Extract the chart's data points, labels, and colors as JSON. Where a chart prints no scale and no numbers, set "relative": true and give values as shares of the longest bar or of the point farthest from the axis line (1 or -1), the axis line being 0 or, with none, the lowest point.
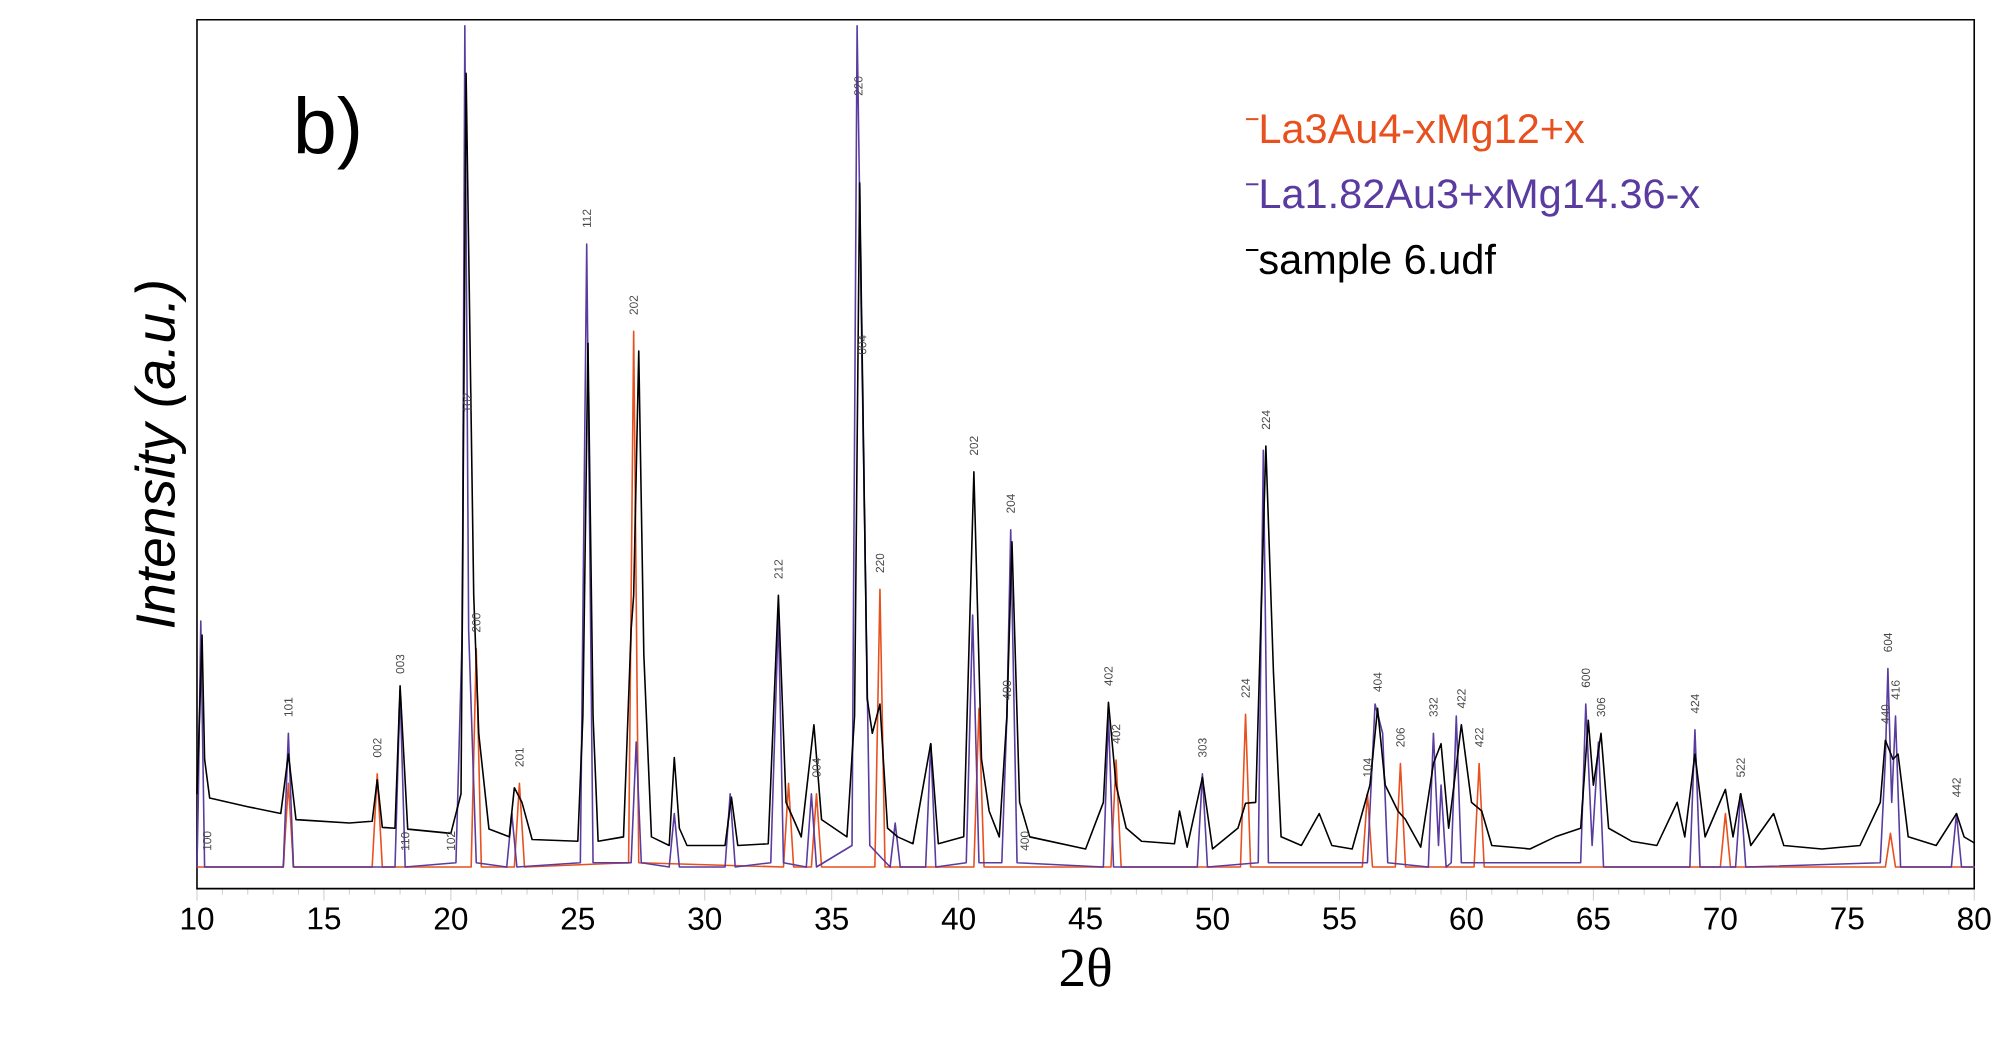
{
  "chart_data": {
    "type": "line",
    "title": "b)",
    "xlabel": "2θ",
    "ylabel": "Intensity (a.u.)",
    "relative": true,
    "legend": "top right",
    "xlim": [
      10,
      80
    ],
    "xticks": [
      10,
      15,
      20,
      25,
      30,
      35,
      40,
      45,
      50,
      55,
      60,
      65,
      70,
      75,
      80
    ],
    "series": [
      {
        "name": "La3Au4-xMg12+x",
        "color": "#e8501e",
        "x": [
          10.0,
          13.4,
          13.6,
          13.8,
          16.9,
          17.1,
          17.3,
          20.8,
          21.0,
          21.2,
          22.5,
          22.7,
          22.9,
          27.0,
          27.2,
          27.4,
          33.1,
          33.3,
          33.5,
          34.2,
          34.4,
          34.6,
          36.7,
          36.9,
          37.1,
          40.6,
          40.8,
          41.0,
          46.0,
          46.2,
          46.4,
          51.1,
          51.3,
          51.5,
          55.9,
          56.1,
          56.3,
          57.2,
          57.4,
          57.6,
          60.3,
          60.5,
          60.7,
          70.0,
          70.2,
          70.4,
          76.5,
          76.7,
          76.9,
          80
        ],
        "values": [
          0.025,
          0.025,
          0.122,
          0.025,
          0.025,
          0.133,
          0.025,
          0.025,
          0.278,
          0.025,
          0.025,
          0.122,
          0.025,
          0.03,
          0.646,
          0.03,
          0.025,
          0.122,
          0.025,
          0.025,
          0.11,
          0.025,
          0.025,
          0.347,
          0.025,
          0.025,
          0.209,
          0.025,
          0.025,
          0.149,
          0.025,
          0.025,
          0.202,
          0.025,
          0.025,
          0.11,
          0.025,
          0.025,
          0.145,
          0.025,
          0.025,
          0.145,
          0.025,
          0.025,
          0.087,
          0.025,
          0.025,
          0.064,
          0.025,
          0.025
        ]
      },
      {
        "name": "La1.82Au3+xMg14.36-x",
        "color": "#5a3ca0",
        "x": [
          10.0,
          10.05,
          10.15,
          10.3,
          13.4,
          13.6,
          13.8,
          17.8,
          18.0,
          18.2,
          20.2,
          20.45,
          20.55,
          20.7,
          21.0,
          22.2,
          22.4,
          22.6,
          25.1,
          25.35,
          25.6,
          27.1,
          27.3,
          27.5,
          28.6,
          28.8,
          29.0,
          30.8,
          31.0,
          31.2,
          32.6,
          32.9,
          33.1,
          34.0,
          34.2,
          34.4,
          35.8,
          36.0,
          36.2,
          36.5,
          37.3,
          37.5,
          37.7,
          38.7,
          38.9,
          39.1,
          40.3,
          40.55,
          40.8,
          41.7,
          41.9,
          42.05,
          42.3,
          45.7,
          45.9,
          46.1,
          49.4,
          49.6,
          49.8,
          51.8,
          52.0,
          52.2,
          56.1,
          56.4,
          56.7,
          56.9,
          58.5,
          58.7,
          58.9,
          59.0,
          59.2,
          59.4,
          59.6,
          59.8,
          64.5,
          64.7,
          64.95,
          65.2,
          65.4,
          68.8,
          69.0,
          69.2,
          70.6,
          70.8,
          71.0,
          76.3,
          76.5,
          76.6,
          76.75,
          76.9,
          77.1,
          79.1,
          79.3,
          79.5,
          80
        ],
        "values": [
          0.025,
          0.1,
          0.31,
          0.025,
          0.025,
          0.18,
          0.025,
          0.025,
          0.23,
          0.025,
          0.03,
          0.3,
          1.0,
          0.3,
          0.03,
          0.025,
          0.087,
          0.025,
          0.03,
          0.747,
          0.03,
          0.03,
          0.17,
          0.03,
          0.025,
          0.087,
          0.025,
          0.025,
          0.11,
          0.025,
          0.03,
          0.317,
          0.03,
          0.025,
          0.11,
          0.025,
          0.05,
          1.0,
          0.6,
          0.05,
          0.025,
          0.076,
          0.025,
          0.025,
          0.168,
          0.025,
          0.03,
          0.317,
          0.03,
          0.03,
          0.2,
          0.416,
          0.03,
          0.025,
          0.2,
          0.025,
          0.025,
          0.133,
          0.025,
          0.03,
          0.508,
          0.03,
          0.03,
          0.214,
          0.18,
          0.03,
          0.025,
          0.18,
          0.05,
          0.12,
          0.025,
          0.03,
          0.2,
          0.03,
          0.03,
          0.214,
          0.05,
          0.17,
          0.025,
          0.025,
          0.184,
          0.025,
          0.025,
          0.11,
          0.025,
          0.03,
          0.15,
          0.255,
          0.1,
          0.2,
          0.025,
          0.025,
          0.087,
          0.025,
          0.025
        ]
      },
      {
        "name": "sample 6.udf",
        "color": "#000000",
        "x": [
          10.0,
          10.1,
          10.2,
          10.3,
          10.5,
          12,
          13.3,
          13.6,
          13.9,
          16,
          16.9,
          17.1,
          17.3,
          17.8,
          18.0,
          18.3,
          20,
          20.4,
          20.6,
          20.9,
          21.1,
          21.5,
          22.3,
          22.5,
          22.8,
          23.2,
          25.0,
          25.2,
          25.4,
          25.6,
          25.8,
          26.8,
          27.1,
          27.2,
          27.4,
          27.6,
          27.9,
          28.6,
          28.8,
          29.0,
          29.3,
          30.8,
          31.05,
          31.3,
          32.5,
          32.9,
          33.2,
          33.4,
          33.8,
          34.3,
          34.6,
          35.6,
          35.9,
          36.1,
          36.4,
          36.6,
          36.9,
          37.2,
          37.6,
          38.2,
          38.9,
          39.2,
          40.2,
          40.6,
          40.9,
          41.2,
          41.6,
          41.9,
          42.1,
          42.4,
          42.8,
          45.0,
          45.7,
          45.9,
          46.2,
          46.6,
          47.2,
          48.5,
          48.7,
          49.0,
          49.6,
          50.0,
          51.0,
          51.3,
          51.7,
          52.1,
          52.4,
          52.7,
          53.5,
          54.2,
          54.7,
          55.5,
          56.2,
          56.5,
          56.8,
          57.3,
          57.6,
          58.2,
          58.7,
          59.0,
          59.3,
          59.8,
          60.2,
          60.6,
          61.0,
          62.5,
          63.5,
          64.5,
          64.8,
          65.0,
          65.3,
          65.6,
          66.5,
          67.5,
          68.3,
          68.6,
          69.0,
          69.4,
          70.2,
          70.5,
          70.8,
          71.2,
          72.1,
          72.5,
          74,
          75.5,
          76.3,
          76.5,
          76.8,
          77.0,
          77.4,
          78.5,
          79.3,
          79.6,
          80
        ],
        "values": [
          0.11,
          0.2,
          0.294,
          0.15,
          0.105,
          0.095,
          0.087,
          0.156,
          0.08,
          0.076,
          0.078,
          0.126,
          0.071,
          0.07,
          0.235,
          0.069,
          0.064,
          0.11,
          0.945,
          0.34,
          0.179,
          0.069,
          0.06,
          0.117,
          0.1,
          0.057,
          0.055,
          0.2,
          0.632,
          0.2,
          0.055,
          0.06,
          0.3,
          0.34,
          0.623,
          0.271,
          0.06,
          0.05,
          0.152,
          0.07,
          0.05,
          0.05,
          0.106,
          0.05,
          0.052,
          0.34,
          0.1,
          0.087,
          0.06,
          0.19,
          0.08,
          0.06,
          0.2,
          0.818,
          0.22,
          0.18,
          0.214,
          0.07,
          0.06,
          0.052,
          0.168,
          0.052,
          0.06,
          0.483,
          0.15,
          0.09,
          0.06,
          0.2,
          0.402,
          0.1,
          0.06,
          0.046,
          0.1,
          0.216,
          0.12,
          0.07,
          0.055,
          0.052,
          0.09,
          0.048,
          0.129,
          0.046,
          0.07,
          0.099,
          0.1,
          0.513,
          0.25,
          0.06,
          0.05,
          0.087,
          0.05,
          0.046,
          0.12,
          0.209,
          0.12,
          0.09,
          0.08,
          0.048,
          0.145,
          0.168,
          0.07,
          0.19,
          0.1,
          0.09,
          0.05,
          0.046,
          0.06,
          0.07,
          0.195,
          0.12,
          0.18,
          0.07,
          0.055,
          0.05,
          0.1,
          0.06,
          0.156,
          0.06,
          0.115,
          0.06,
          0.11,
          0.05,
          0.087,
          0.05,
          0.046,
          0.05,
          0.1,
          0.172,
          0.15,
          0.156,
          0.06,
          0.05,
          0.087,
          0.06,
          0.053
        ]
      }
    ],
    "annotations": [
      {
        "text": "100",
        "x": 10.4,
        "y": 0.025
      },
      {
        "text": "101",
        "x": 13.6,
        "y": 0.18
      },
      {
        "text": "002",
        "x": 17.1,
        "y": 0.133
      },
      {
        "text": "003",
        "x": 18.0,
        "y": 0.23
      },
      {
        "text": "110",
        "x": 18.2,
        "y": 0.025
      },
      {
        "text": "102",
        "x": 20.0,
        "y": 0.025
      },
      {
        "text": "102",
        "x": 20.65,
        "y": 0.533
      },
      {
        "text": "200",
        "x": 21.0,
        "y": 0.278
      },
      {
        "text": "201",
        "x": 22.7,
        "y": 0.122
      },
      {
        "text": "112",
        "x": 25.35,
        "y": 0.747
      },
      {
        "text": "202",
        "x": 27.2,
        "y": 0.646
      },
      {
        "text": "212",
        "x": 32.9,
        "y": 0.34
      },
      {
        "text": "004",
        "x": 34.4,
        "y": 0.11
      },
      {
        "text": "220",
        "x": 36.05,
        "y": 0.9
      },
      {
        "text": "004",
        "x": 36.2,
        "y": 0.6
      },
      {
        "text": "220",
        "x": 36.9,
        "y": 0.347
      },
      {
        "text": "202",
        "x": 40.6,
        "y": 0.483
      },
      {
        "text": "400",
        "x": 41.9,
        "y": 0.2
      },
      {
        "text": "204",
        "x": 42.05,
        "y": 0.416
      },
      {
        "text": "400",
        "x": 42.6,
        "y": 0.025
      },
      {
        "text": "402",
        "x": 45.9,
        "y": 0.216
      },
      {
        "text": "402",
        "x": 46.2,
        "y": 0.149
      },
      {
        "text": "303",
        "x": 49.6,
        "y": 0.133
      },
      {
        "text": "224",
        "x": 51.3,
        "y": 0.202
      },
      {
        "text": "224",
        "x": 52.1,
        "y": 0.513
      },
      {
        "text": "104",
        "x": 56.1,
        "y": 0.11
      },
      {
        "text": "404",
        "x": 56.5,
        "y": 0.209
      },
      {
        "text": "206",
        "x": 57.4,
        "y": 0.145
      },
      {
        "text": "332",
        "x": 58.7,
        "y": 0.18
      },
      {
        "text": "422",
        "x": 59.8,
        "y": 0.19
      },
      {
        "text": "422",
        "x": 60.5,
        "y": 0.145
      },
      {
        "text": "600",
        "x": 64.7,
        "y": 0.214
      },
      {
        "text": "306",
        "x": 65.3,
        "y": 0.18
      },
      {
        "text": "424",
        "x": 69.0,
        "y": 0.184
      },
      {
        "text": "522",
        "x": 70.8,
        "y": 0.11
      },
      {
        "text": "440",
        "x": 76.5,
        "y": 0.172
      },
      {
        "text": "604",
        "x": 76.6,
        "y": 0.255
      },
      {
        "text": "416",
        "x": 76.9,
        "y": 0.2
      },
      {
        "text": "442",
        "x": 79.3,
        "y": 0.087
      }
    ]
  }
}
